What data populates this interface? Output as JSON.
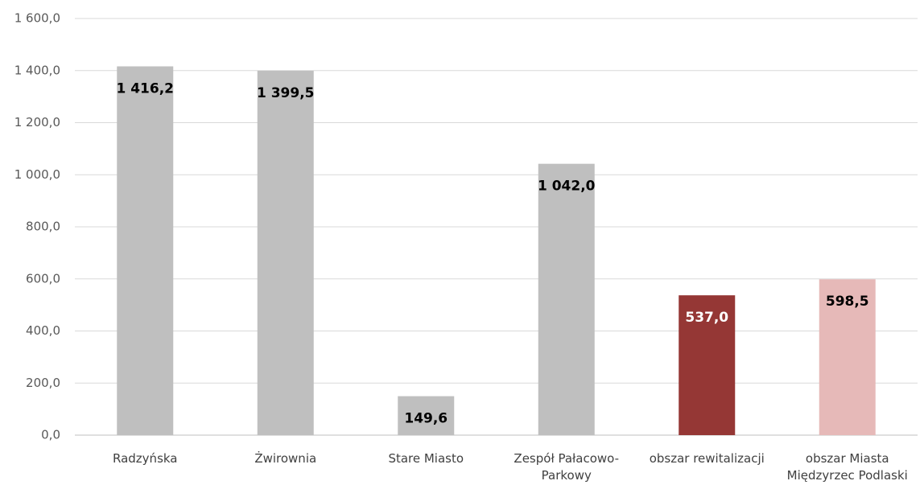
{
  "chart_data": {
    "type": "bar",
    "categories": [
      "Radzyńska",
      "Żwirownia",
      "Stare Miasto",
      "Zespół Pałacowo-Parkowy",
      "obszar rewitalizacji",
      "obszar Miasta Międzyrzec Podlaski"
    ],
    "values": [
      1416.2,
      1399.5,
      149.6,
      1042.0,
      537.0,
      598.5
    ],
    "value_labels": [
      "1 416,2",
      "1 399,5",
      "149,6",
      "1 042,0",
      "537,0",
      "598,5"
    ],
    "colors": [
      "#bfbfbf",
      "#bfbfbf",
      "#bfbfbf",
      "#bfbfbf",
      "#953735",
      "#e6b9b8"
    ],
    "label_colors": [
      "#000000",
      "#000000",
      "#000000",
      "#000000",
      "#ffffff",
      "#000000"
    ],
    "ylim": [
      0,
      1600
    ],
    "yticks": [
      {
        "value": 0,
        "label": "0,0"
      },
      {
        "value": 200,
        "label": "200,0"
      },
      {
        "value": 400,
        "label": "400,0"
      },
      {
        "value": 600,
        "label": "600,0"
      },
      {
        "value": 800,
        "label": "800,0"
      },
      {
        "value": 1000,
        "label": "1 000,0"
      },
      {
        "value": 1200,
        "label": "1 200,0"
      },
      {
        "value": 1400,
        "label": "1 400,0"
      },
      {
        "value": 1600,
        "label": "1 600,0"
      }
    ],
    "grid": true
  }
}
